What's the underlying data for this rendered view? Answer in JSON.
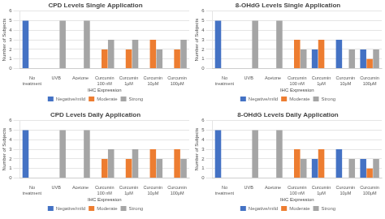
{
  "chart_data": [
    {
      "type": "bar",
      "title": "CPD Levels Single Application",
      "categories": [
        "No\ntreatment",
        "UVB",
        "Acetone",
        "Curcumin\n100 nM",
        "Curcumin\n1μM",
        "Curcumin\n10μM",
        "Curcumin\n100μM"
      ],
      "series": [
        {
          "name": "Negative/mild",
          "color": "#4472C4",
          "values": [
            5,
            0,
            0,
            0,
            0,
            0,
            0
          ]
        },
        {
          "name": "Moderate",
          "color": "#ED7D31",
          "values": [
            0,
            0,
            0,
            2,
            2,
            3,
            2
          ]
        },
        {
          "name": "Strong",
          "color": "#A5A5A5",
          "values": [
            0,
            5,
            5,
            3,
            3,
            2,
            3
          ]
        }
      ],
      "xlabel": "IHC Expression",
      "ylabel": "Number of Subjects",
      "ylim": [
        0,
        6
      ],
      "yticks": [
        0,
        1,
        2,
        3,
        4,
        5,
        6
      ],
      "grid": "y",
      "legend": "bottom"
    },
    {
      "type": "bar",
      "title": "8-OHdG Levels Single Application",
      "categories": [
        "No\ntreatment",
        "UVB",
        "Acetone",
        "Curcumin\n100 nM",
        "Curcumin\n1μM",
        "Curcumin\n10μM",
        "Curcumin\n100μM"
      ],
      "series": [
        {
          "name": "Negative/mild",
          "color": "#4472C4",
          "values": [
            5,
            0,
            0,
            0,
            2,
            3,
            2
          ]
        },
        {
          "name": "Moderate",
          "color": "#ED7D31",
          "values": [
            0,
            0,
            0,
            3,
            3,
            0,
            1
          ]
        },
        {
          "name": "Strong",
          "color": "#A5A5A5",
          "values": [
            0,
            5,
            5,
            2,
            0,
            2,
            2
          ]
        }
      ],
      "xlabel": "IHC Expression",
      "ylabel": "Number of Subjects",
      "ylim": [
        0,
        6
      ],
      "yticks": [
        0,
        1,
        2,
        3,
        4,
        5,
        6
      ],
      "grid": "y",
      "legend": "bottom"
    },
    {
      "type": "bar",
      "title": "CPD Levels Daily Application",
      "categories": [
        "No\ntreatment",
        "UVB",
        "Acetone",
        "Curcumin\n100 nM",
        "Curcumin\n1μM",
        "Curcumin\n10μM",
        "Curcumin\n100μM"
      ],
      "series": [
        {
          "name": "Negative/mild",
          "color": "#4472C4",
          "values": [
            5,
            0,
            0,
            0,
            0,
            0,
            0
          ]
        },
        {
          "name": "Moderate",
          "color": "#ED7D31",
          "values": [
            0,
            0,
            0,
            2,
            2,
            3,
            3
          ]
        },
        {
          "name": "Strong",
          "color": "#A5A5A5",
          "values": [
            0,
            5,
            5,
            3,
            3,
            2,
            2
          ]
        }
      ],
      "xlabel": "IHC Expression",
      "ylabel": "Number of Subjects",
      "ylim": [
        0,
        6
      ],
      "yticks": [
        0,
        1,
        2,
        3,
        4,
        5,
        6
      ],
      "grid": "y",
      "legend": "bottom"
    },
    {
      "type": "bar",
      "title": "8-OHdG Levels Daily Application",
      "categories": [
        "No\ntreatment",
        "UVB",
        "Acetone",
        "Curcumin\n100 nM",
        "Curcumin\n1μM",
        "Curcumin\n10μM",
        "Curcumin\n100μM"
      ],
      "series": [
        {
          "name": "Negative/mild",
          "color": "#4472C4",
          "values": [
            5,
            0,
            0,
            0,
            2,
            3,
            2
          ]
        },
        {
          "name": "Moderate",
          "color": "#ED7D31",
          "values": [
            0,
            0,
            0,
            3,
            3,
            0,
            1
          ]
        },
        {
          "name": "Strong",
          "color": "#A5A5A5",
          "values": [
            0,
            5,
            5,
            2,
            0,
            2,
            2
          ]
        }
      ],
      "xlabel": "IHC Expression",
      "ylabel": "Number of Subjects",
      "ylim": [
        0,
        6
      ],
      "yticks": [
        0,
        1,
        2,
        3,
        4,
        5,
        6
      ],
      "grid": "y",
      "legend": "bottom"
    }
  ]
}
